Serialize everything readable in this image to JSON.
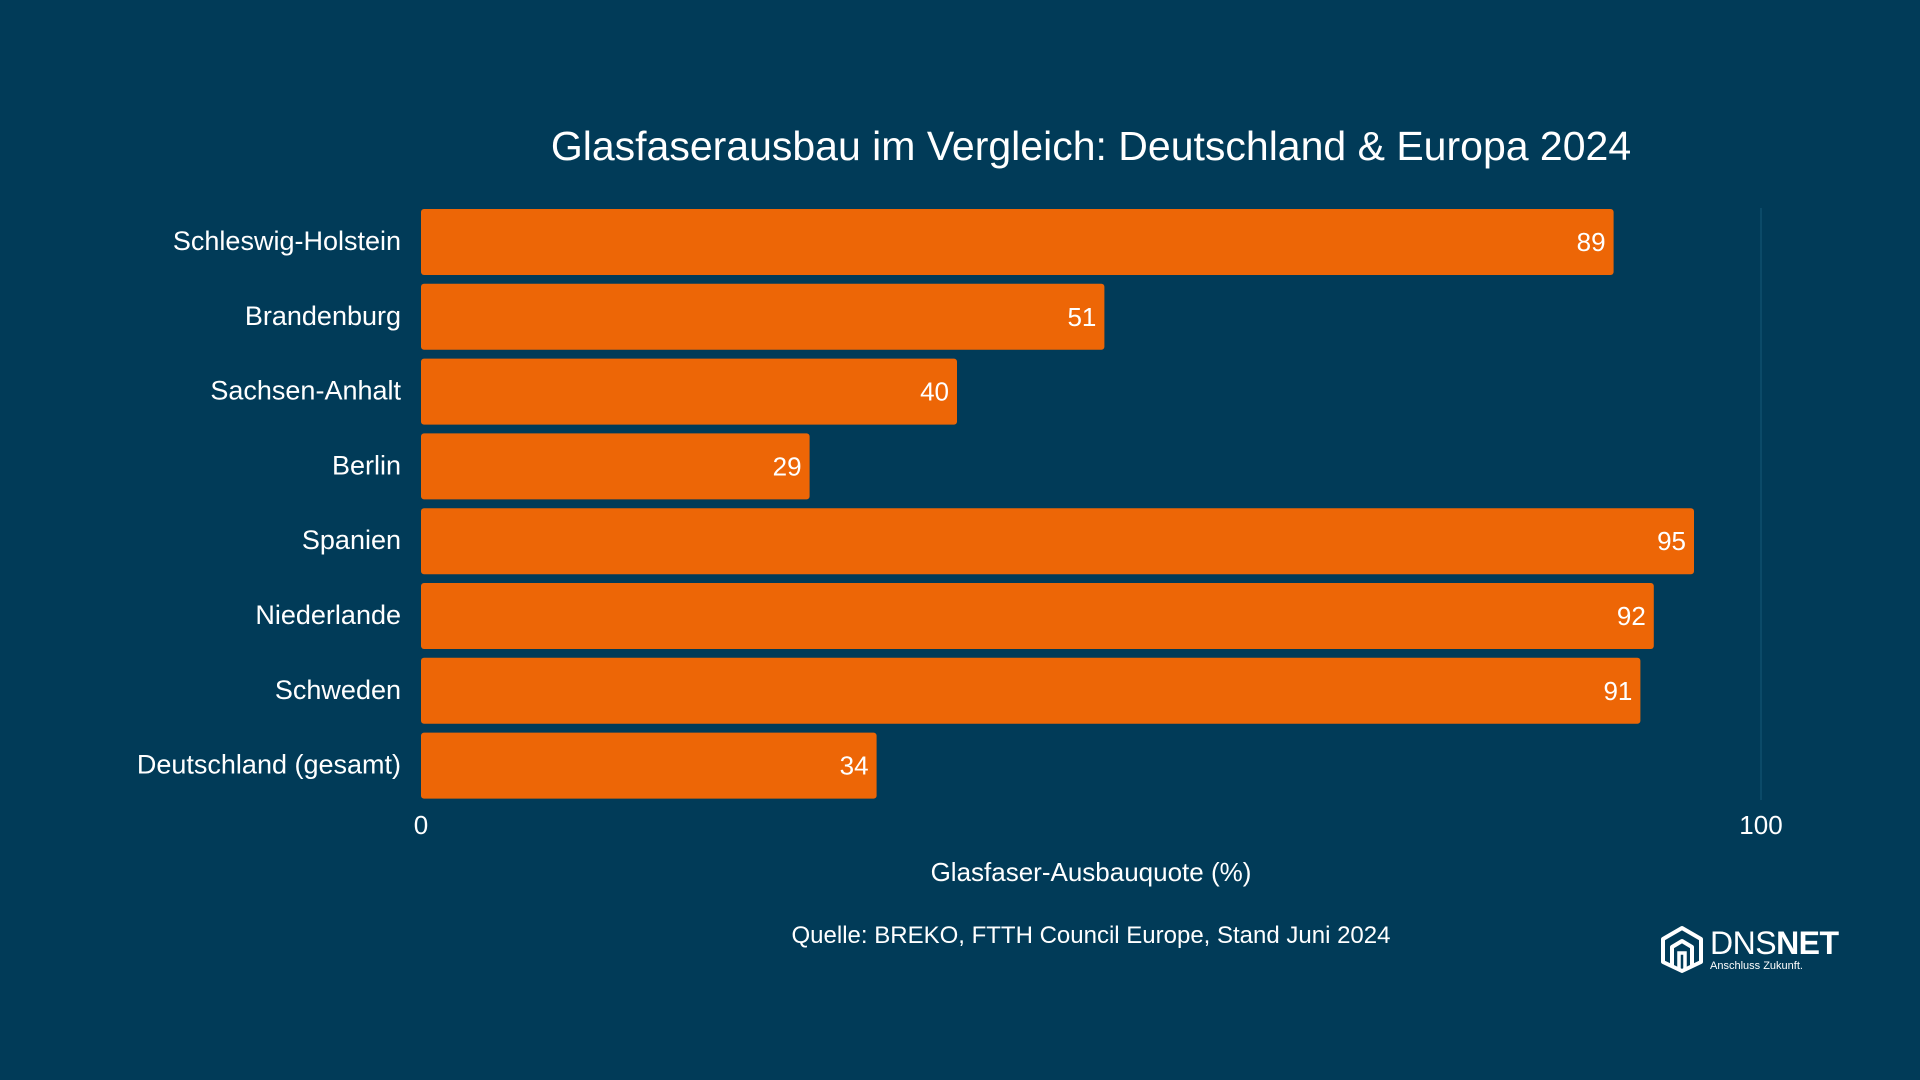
{
  "chart_data": {
    "type": "bar",
    "orientation": "horizontal",
    "title": "Glasfaserausbau im Vergleich: Deutschland & Europa 2024",
    "categories": [
      "Schleswig-Holstein",
      "Brandenburg",
      "Sachsen-Anhalt",
      "Berlin",
      "Spanien",
      "Niederlande",
      "Schweden",
      "Deutschland (gesamt)"
    ],
    "values": [
      89,
      51,
      40,
      29,
      95,
      92,
      91,
      34
    ],
    "data_labels": [
      "89",
      "51",
      "40",
      "29",
      "95",
      "92",
      "91",
      "34"
    ],
    "xlabel": "Glasfaser-Ausbauquote (%)",
    "ylabel": "",
    "xlim": [
      0,
      100
    ],
    "xticks": [
      "0",
      "100"
    ],
    "grid": false,
    "bar_color": "#ed6606",
    "source": "Quelle: BREKO, FTTH Council Europe, Stand Juni 2024"
  },
  "logo": {
    "name_regular": "DNS",
    "name_bold": "NET",
    "tagline": "Anschluss Zukunft.",
    "icon": "house-logo-icon"
  },
  "colors": {
    "background": "#013b58",
    "text": "#ffffff",
    "axis": "#0f4f6e"
  }
}
